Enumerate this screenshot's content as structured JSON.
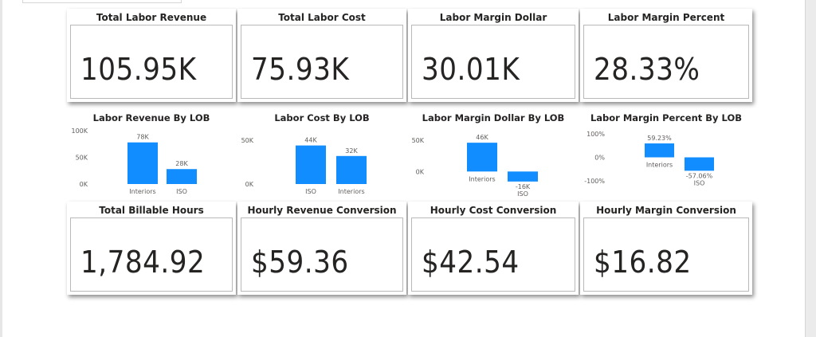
{
  "kpi_row1": [
    {
      "title": "Total Labor Revenue",
      "value": "105.95K"
    },
    {
      "title": "Total Labor Cost",
      "value": "75.93K"
    },
    {
      "title": "Labor Margin Dollar",
      "value": "30.01K"
    },
    {
      "title": "Labor Margin Percent",
      "value": "28.33%"
    }
  ],
  "kpi_row2": [
    {
      "title": "Total Billable Hours",
      "value": "1,784.92"
    },
    {
      "title": "Hourly Revenue Conversion",
      "value": "$59.36"
    },
    {
      "title": "Hourly Cost Conversion",
      "value": "$42.54"
    },
    {
      "title": "Hourly Margin Conversion",
      "value": "$16.82"
    }
  ],
  "colors": {
    "bar": "#118dff",
    "text": "#252423",
    "axis_text": "#605e5c",
    "card_border": "#b9b9b9"
  },
  "chart_data": [
    {
      "type": "bar",
      "title": "Labor Revenue By LOB",
      "categories": [
        "Interiors",
        "ISO"
      ],
      "values": [
        78000,
        28000
      ],
      "data_labels": [
        "78K",
        "28K"
      ],
      "yticks": [
        "100K",
        "50K",
        "0K"
      ],
      "ylim": [
        0,
        100000
      ],
      "grid": false
    },
    {
      "type": "bar",
      "title": "Labor Cost By LOB",
      "categories": [
        "ISO",
        "Interiors"
      ],
      "values": [
        44000,
        32000
      ],
      "data_labels": [
        "44K",
        "32K"
      ],
      "yticks": [
        "50K",
        "0K"
      ],
      "ylim": [
        0,
        50000
      ],
      "grid": false
    },
    {
      "type": "bar",
      "title": "Labor Margin Dollar By LOB",
      "categories": [
        "Interiors",
        "ISO"
      ],
      "values": [
        46000,
        -16000
      ],
      "data_labels": [
        "46K",
        "-16K"
      ],
      "yticks": [
        "50K",
        "0K"
      ],
      "ylim": [
        -20000,
        50000
      ],
      "grid": false
    },
    {
      "type": "bar",
      "title": "Labor Margin Percent By LOB",
      "categories": [
        "Interiors",
        "ISO"
      ],
      "values": [
        59.23,
        -57.06
      ],
      "data_labels": [
        "59.23%",
        "-57.06%"
      ],
      "yticks": [
        "100%",
        "0%",
        "-100%"
      ],
      "ylim": [
        -100,
        100
      ],
      "grid": false
    }
  ]
}
